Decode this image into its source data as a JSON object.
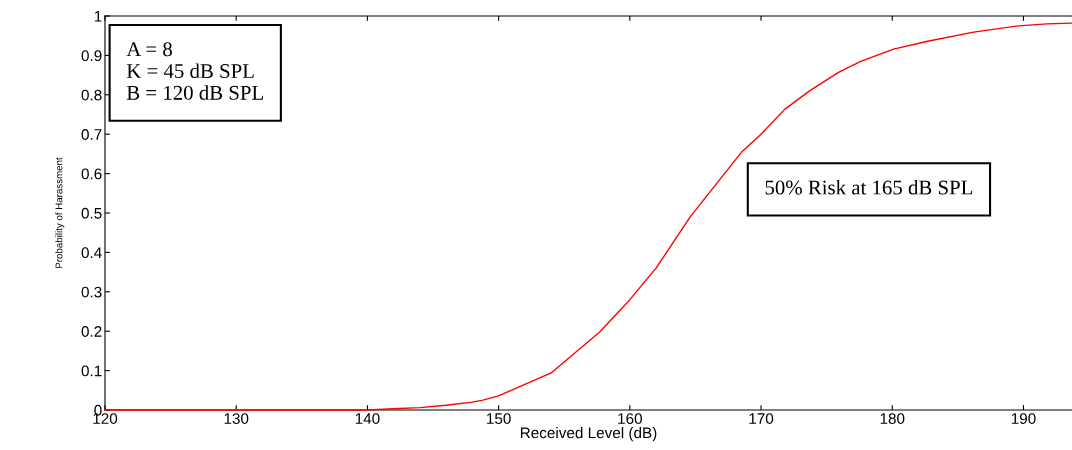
{
  "chart_data": {
    "type": "line",
    "xlabel": "Received Level (dB)",
    "ylabel": "Probability of Harassment",
    "annotations": [
      "A = 8\nK = 45 dB SPL\nB = 120 dB SPL",
      "50% Risk at 165 dB SPL"
    ],
    "series": [
      {
        "color": "#ff0000",
        "x": [
          120,
          130,
          140,
          142,
          144,
          146,
          148,
          148.8,
          150,
          154,
          157.7,
          160,
          162,
          164.6,
          168.5,
          170,
          171.8,
          173.7,
          175.9,
          177.6,
          180.1,
          182.7,
          186.2,
          189.6,
          191.8,
          193.7
        ],
        "values": [
          0,
          0,
          0,
          0.003,
          0.006,
          0.012,
          0.02,
          0.025,
          0.036,
          0.094,
          0.198,
          0.28,
          0.36,
          0.49,
          0.654,
          0.7,
          0.763,
          0.81,
          0.857,
          0.885,
          0.916,
          0.936,
          0.959,
          0.975,
          0.98,
          0.982
        ]
      }
    ],
    "xlim": [
      120,
      193.7
    ],
    "ylim": [
      0,
      1
    ],
    "xticks": [
      120,
      130,
      140,
      150,
      160,
      170,
      180,
      190
    ],
    "yticks": [
      0,
      0.1,
      0.2,
      0.3,
      0.4,
      0.5,
      0.6,
      0.7,
      0.8,
      0.9,
      1
    ],
    "grid": false,
    "marker": "none",
    "line_style": "solid"
  }
}
